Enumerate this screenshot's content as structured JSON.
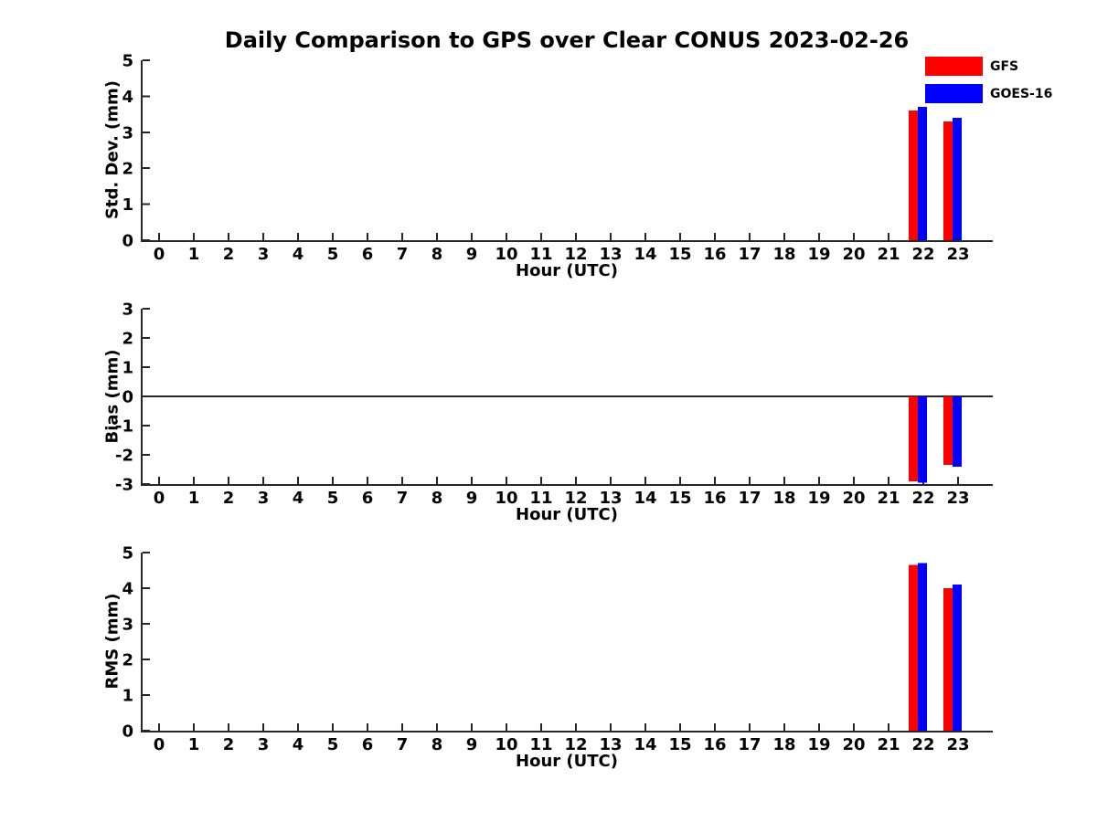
{
  "title": "Daily Comparison to GPS over Clear CONUS 2023-02-26",
  "legend": {
    "position": "top-right",
    "entries": [
      {
        "label": "GFS",
        "color": "#ff0000"
      },
      {
        "label": "GOES-16",
        "color": "#0000ff"
      }
    ]
  },
  "colors": {
    "background": "#ffffff",
    "axis": "#262626",
    "text": "#000000",
    "gfs_bar": "#ff0000",
    "goes16_bar": "#0000ff"
  },
  "hour_ticks": [
    "0",
    "1",
    "2",
    "3",
    "4",
    "5",
    "6",
    "7",
    "8",
    "9",
    "10",
    "11",
    "12",
    "13",
    "14",
    "15",
    "16",
    "17",
    "18",
    "19",
    "20",
    "21",
    "22",
    "23"
  ],
  "chart_data": [
    {
      "type": "bar",
      "title": "Daily Comparison to GPS over Clear CONUS 2023-02-26",
      "ylabel": "Std. Dev. (mm)",
      "xlabel": "Hour (UTC)",
      "ylim": [
        0,
        5
      ],
      "yticks": [
        0,
        1,
        2,
        3,
        4,
        5
      ],
      "grid": false,
      "zero_line": false,
      "legend_position": "top-right",
      "bar_hours": [
        22,
        23
      ],
      "series": [
        {
          "name": "GFS",
          "color": "#ff0000",
          "values": [
            3.6,
            3.3
          ]
        },
        {
          "name": "GOES-16",
          "color": "#0000ff",
          "values": [
            3.7,
            3.4
          ]
        }
      ]
    },
    {
      "type": "bar",
      "ylabel": "Bias (mm)",
      "xlabel": "Hour (UTC)",
      "ylim": [
        -3,
        3
      ],
      "yticks": [
        -3,
        -2,
        -1,
        0,
        1,
        2,
        3
      ],
      "grid": false,
      "zero_line": true,
      "bar_hours": [
        22,
        23
      ],
      "series": [
        {
          "name": "GFS",
          "color": "#ff0000",
          "values": [
            -2.9,
            -2.35
          ]
        },
        {
          "name": "GOES-16",
          "color": "#0000ff",
          "values": [
            -2.95,
            -2.4
          ]
        }
      ]
    },
    {
      "type": "bar",
      "ylabel": "RMS (mm)",
      "xlabel": "Hour (UTC)",
      "ylim": [
        0,
        5
      ],
      "yticks": [
        0,
        1,
        2,
        3,
        4,
        5
      ],
      "grid": false,
      "zero_line": false,
      "bar_hours": [
        22,
        23
      ],
      "series": [
        {
          "name": "GFS",
          "color": "#ff0000",
          "values": [
            4.65,
            4.0
          ]
        },
        {
          "name": "GOES-16",
          "color": "#0000ff",
          "values": [
            4.7,
            4.1
          ]
        }
      ]
    }
  ]
}
